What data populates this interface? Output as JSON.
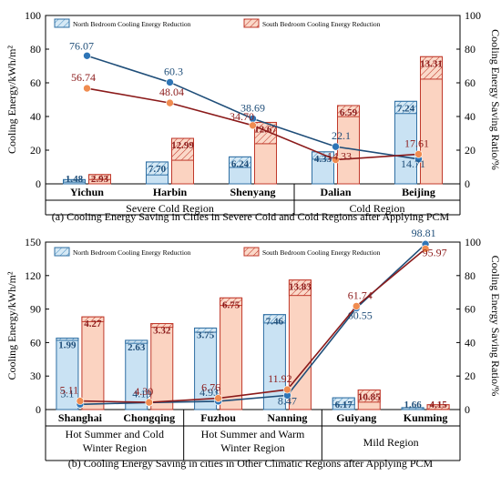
{
  "chart_data": [
    {
      "type": "bar",
      "caption": "(a) Cooling Energy Saving in Cities in Severe Cold and Cold Regions after Applying PCM",
      "categories": [
        "Yichun",
        "Harbin",
        "Shenyang",
        "Dalian",
        "Beijing"
      ],
      "groups": [
        {
          "label": "Severe Cold Region",
          "categories": [
            "Yichun",
            "Harbin",
            "Shenyang"
          ]
        },
        {
          "label": "Cold Region",
          "categories": [
            "Dalian",
            "Beijing"
          ]
        }
      ],
      "ylabel": "Cooling Energy/kWh/m²",
      "y2label": "Cooling Energy Saving Ratio/%",
      "ylim": [
        0,
        100
      ],
      "yticks": [
        "0",
        "20",
        "40",
        "60",
        "80",
        "100"
      ],
      "y2lim": [
        0,
        100
      ],
      "y2ticks": [
        "0",
        "20",
        "40",
        "60",
        "80",
        "100"
      ],
      "legend": [
        "North Bedroom Cooling Energy Reduction",
        "South Bedroom Cooling Energy Reduction"
      ],
      "legend_position": "top-center",
      "series": [
        {
          "name": "North Bedroom Cooling Energy Reduction",
          "kind": "bar",
          "axis": "left",
          "total": [
            2.5,
            13,
            16,
            19,
            49
          ],
          "reduction": [
            1.48,
            7.7,
            6.24,
            4.33,
            7.24
          ],
          "labels": [
            "1.48",
            "7.70",
            "6.24",
            "4.33",
            "7.24"
          ]
        },
        {
          "name": "South Bedroom Cooling Energy Reduction",
          "kind": "bar",
          "axis": "left",
          "total": [
            5.5,
            27,
            36.5,
            46.5,
            75.5
          ],
          "reduction": [
            2.93,
            12.99,
            12.67,
            6.59,
            13.31
          ],
          "labels": [
            "2.93",
            "12.99",
            "12.67",
            "6.59",
            "13.31"
          ]
        },
        {
          "kind": "line",
          "axis": "right",
          "color": "#1f4e79",
          "values": [
            76.07,
            60.3,
            38.69,
            22.1,
            14.71
          ],
          "labels": [
            "76.07",
            "60.3",
            "38.69",
            "22.1",
            "14.71"
          ]
        },
        {
          "kind": "line",
          "axis": "right",
          "color": "#8b1a1a",
          "values": [
            56.74,
            48.04,
            34.7,
            14.33,
            17.61
          ],
          "labels": [
            "56.74",
            "48.04",
            "34.70",
            "14.33",
            "17.61"
          ]
        }
      ]
    },
    {
      "type": "bar",
      "caption": "(b) Cooling Energy Saving in cities in Other Climatic Regions after Applying PCM",
      "categories": [
        "Shanghai",
        "Chongqing",
        "Fuzhou",
        "Nanning",
        "Guiyang",
        "Kunming"
      ],
      "groups": [
        {
          "label": "Hot Summer and Cold Winter Region",
          "categories": [
            "Shanghai",
            "Chongqing"
          ]
        },
        {
          "label": "Hot Summer and Warm Winter Region",
          "categories": [
            "Fuzhou",
            "Nanning"
          ]
        },
        {
          "label": "Mild Region",
          "categories": [
            "Guiyang",
            "Kunming"
          ]
        }
      ],
      "ylabel": "Cooling Energy/kWh/m²",
      "y2label": "Cooling Energy Saving Ratio/%",
      "ylim": [
        0,
        150
      ],
      "yticks": [
        "0",
        "30",
        "60",
        "90",
        "120",
        "150"
      ],
      "y2lim": [
        0,
        100
      ],
      "y2ticks": [
        "0",
        "20",
        "40",
        "60",
        "80",
        "100"
      ],
      "legend": [
        "North Bedroom Cooling Energy Reduction",
        "South Bedroom Cooling Energy Reduction"
      ],
      "legend_position": "top-center",
      "series": [
        {
          "name": "North Bedroom Cooling Energy Reduction",
          "kind": "bar",
          "axis": "left",
          "total": [
            64,
            62,
            73,
            85,
            10.5,
            1.7
          ],
          "reduction": [
            1.99,
            2.63,
            3.75,
            7.46,
            6.17,
            1.66
          ],
          "labels": [
            "1.99",
            "2.63",
            "3.75",
            "7.46",
            "6.17",
            "1.66"
          ]
        },
        {
          "name": "South Bedroom Cooling Energy Reduction",
          "kind": "bar",
          "axis": "left",
          "total": [
            83,
            77,
            100,
            116,
            17.5,
            4.3
          ],
          "reduction": [
            4.27,
            3.32,
            6.75,
            13.83,
            10.85,
            4.15
          ],
          "labels": [
            "4.27",
            "3.32",
            "6.75",
            "13.83",
            "10.85",
            "4.15"
          ]
        },
        {
          "kind": "line",
          "axis": "right",
          "color": "#1f4e79",
          "values": [
            3.1,
            4.19,
            4.93,
            8.47,
            60.55,
            98.81
          ],
          "labels": [
            "3.1",
            "4.19",
            "4.93",
            "8.47",
            "60.55",
            "98.81"
          ]
        },
        {
          "kind": "line",
          "axis": "right",
          "color": "#8b1a1a",
          "values": [
            5.11,
            4.3,
            6.76,
            11.92,
            61.74,
            95.97
          ],
          "labels": [
            "5.11",
            "4.30",
            "6.76",
            "11.92",
            "61.74",
            "95.97"
          ]
        }
      ]
    }
  ]
}
